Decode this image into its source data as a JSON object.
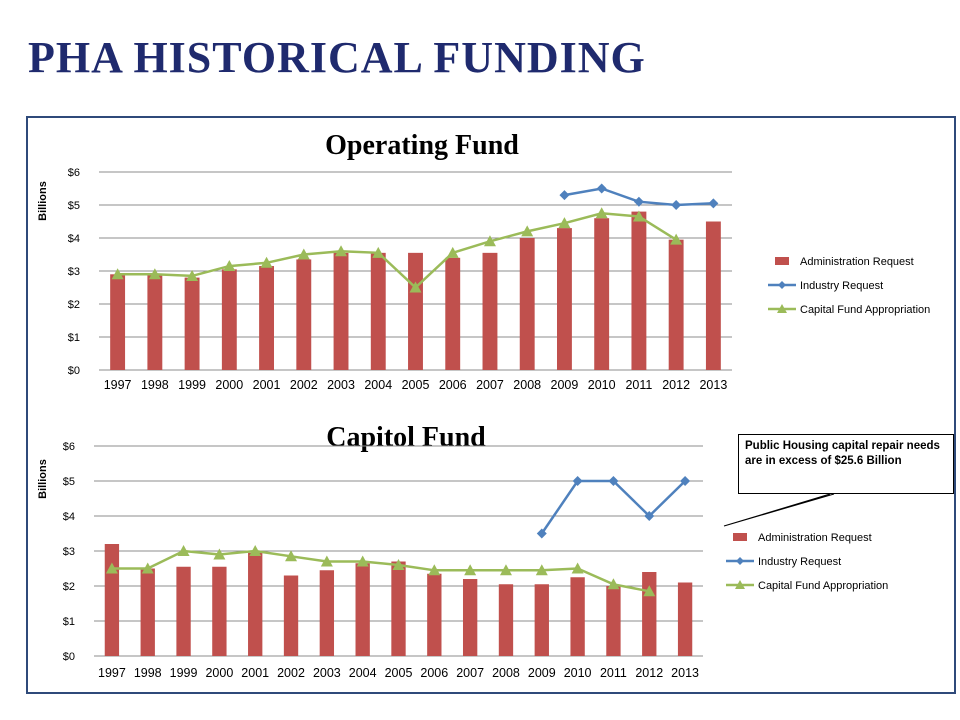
{
  "page": {
    "title": "PHA HISTORICAL FUNDING"
  },
  "colors": {
    "title": "#1f2a6e",
    "bar": "#c0504d",
    "industry": "#4f81bd",
    "capital": "#9bbb59",
    "grid": "#8c8c8c"
  },
  "callout": {
    "text": "Public Housing capital repair needs are in excess of $25.6 Billion"
  },
  "chart_data": [
    {
      "type": "bar",
      "title": "Operating Fund",
      "ylabel": "Billions",
      "xlabel": "",
      "ylim": [
        0,
        6
      ],
      "yticks": [
        "$0",
        "$1",
        "$2",
        "$3",
        "$4",
        "$5",
        "$6"
      ],
      "grid": true,
      "legend_position": "right",
      "categories": [
        "1997",
        "1998",
        "1999",
        "2000",
        "2001",
        "2002",
        "2003",
        "2004",
        "2005",
        "2006",
        "2007",
        "2008",
        "2009",
        "2010",
        "2011",
        "2012",
        "2013"
      ],
      "series": [
        {
          "name": "Administration Request",
          "kind": "bar",
          "color": "#c0504d",
          "values": [
            2.9,
            2.9,
            2.8,
            3.05,
            3.15,
            3.35,
            3.55,
            3.55,
            3.55,
            3.4,
            3.55,
            4.0,
            4.3,
            4.6,
            4.8,
            3.95,
            4.5
          ]
        },
        {
          "name": "Industry Request",
          "kind": "line",
          "marker": "diamond",
          "color": "#4f81bd",
          "values": [
            null,
            null,
            null,
            null,
            null,
            null,
            null,
            null,
            null,
            null,
            null,
            null,
            5.3,
            5.5,
            5.1,
            5.0,
            5.05
          ]
        },
        {
          "name": "Capital Fund Appropriation",
          "kind": "line",
          "marker": "triangle",
          "color": "#9bbb59",
          "values": [
            2.9,
            2.9,
            2.85,
            3.15,
            3.25,
            3.5,
            3.6,
            3.55,
            2.5,
            3.55,
            3.9,
            4.2,
            4.45,
            4.75,
            4.65,
            3.95,
            null
          ]
        }
      ]
    },
    {
      "type": "bar",
      "title": "Capitol Fund",
      "ylabel": "Billions",
      "xlabel": "",
      "ylim": [
        0,
        6
      ],
      "yticks": [
        "$0",
        "$1",
        "$2",
        "$3",
        "$4",
        "$5",
        "$6"
      ],
      "grid": true,
      "legend_position": "right",
      "categories": [
        "1997",
        "1998",
        "1999",
        "2000",
        "2001",
        "2002",
        "2003",
        "2004",
        "2005",
        "2006",
        "2007",
        "2008",
        "2009",
        "2010",
        "2011",
        "2012",
        "2013"
      ],
      "series": [
        {
          "name": "Administration Request",
          "kind": "bar",
          "color": "#c0504d",
          "values": [
            3.2,
            2.5,
            2.55,
            2.55,
            2.95,
            2.3,
            2.45,
            2.65,
            2.7,
            2.35,
            2.2,
            2.05,
            2.05,
            2.25,
            2.0,
            2.4,
            2.1
          ]
        },
        {
          "name": "Industry Request",
          "kind": "line",
          "marker": "diamond",
          "color": "#4f81bd",
          "values": [
            null,
            null,
            null,
            null,
            null,
            null,
            null,
            null,
            null,
            null,
            null,
            null,
            3.5,
            5.0,
            5.0,
            4.0,
            5.0
          ]
        },
        {
          "name": "Capital Fund Appropriation",
          "kind": "line",
          "marker": "triangle",
          "color": "#9bbb59",
          "values": [
            2.5,
            2.5,
            3.0,
            2.9,
            3.0,
            2.85,
            2.7,
            2.7,
            2.6,
            2.45,
            2.45,
            2.45,
            2.45,
            2.5,
            2.05,
            1.85,
            null
          ]
        }
      ]
    }
  ]
}
